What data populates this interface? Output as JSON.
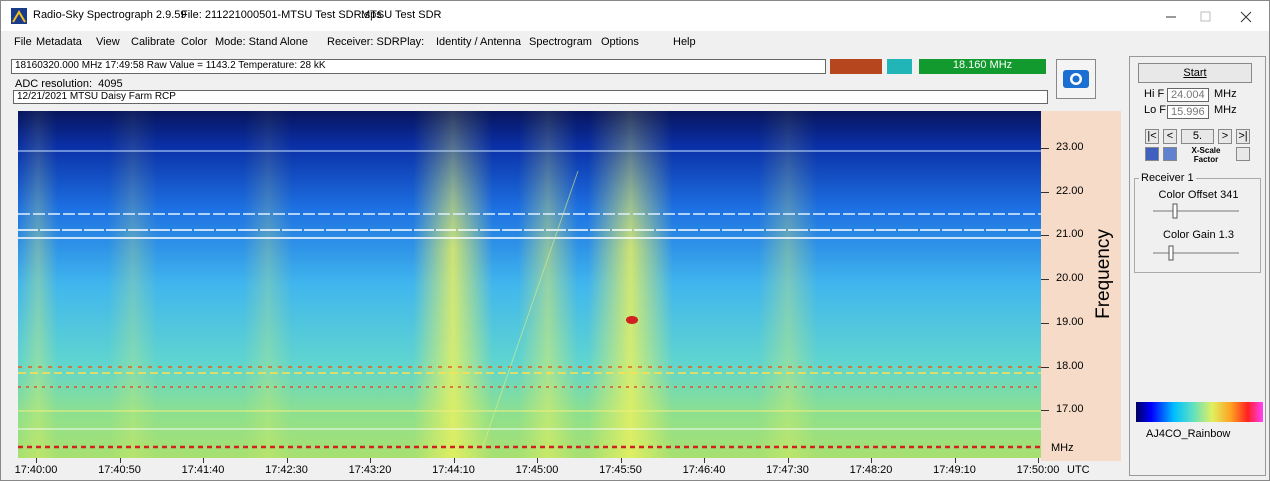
{
  "title_bar": {
    "app": "Radio-Sky Spectrograph 2.9.59",
    "file": "File: 211221000501-MTSU Test SDR.sps",
    "station": "MTSU Test SDR"
  },
  "menu": [
    "File",
    "Metadata",
    "View",
    "Calibrate",
    "Color",
    "Mode: Stand Alone",
    "Receiver: SDRPlay:",
    "Identity / Antenna",
    "Spectrogram",
    "Options",
    "Help"
  ],
  "status": {
    "readout": "18160320.000 MHz  17:49:58  Raw Value = 1143.2  Temperature: 28 kK",
    "frequency": "18.160 MHz",
    "adc": "ADC resolution:  4095",
    "notes": "12/21/2021 MTSU Daisy Farm RCP"
  },
  "spectrogram": {
    "y_axis_label": "Frequency",
    "y_ticks": [
      "23.00",
      "22.00",
      "21.00",
      "20.00",
      "19.00",
      "18.00",
      "17.00"
    ],
    "y_unit": "MHz",
    "x_ticks": [
      "17:40:00",
      "17:40:50",
      "17:41:40",
      "17:42:30",
      "17:43:20",
      "17:44:10",
      "17:45:00",
      "17:45:50",
      "17:46:40",
      "17:47:30",
      "17:48:20",
      "17:49:10",
      "17:50:00"
    ],
    "x_unit": "UTC"
  },
  "controls": {
    "start": "Start",
    "hi_f_label": "Hi F",
    "hi_f": "24.004",
    "lo_f_label": "Lo F",
    "lo_f": "15.996",
    "unit": "MHz",
    "nav": [
      "|<",
      "<",
      "5.",
      ">",
      ">|"
    ],
    "x_scale": "X-Scale Factor",
    "receiver": "Receiver 1",
    "color_offset": "Color Offset 341",
    "color_gain": "Color Gain 1.3",
    "palette": "AJ4CO_Rainbow"
  }
}
